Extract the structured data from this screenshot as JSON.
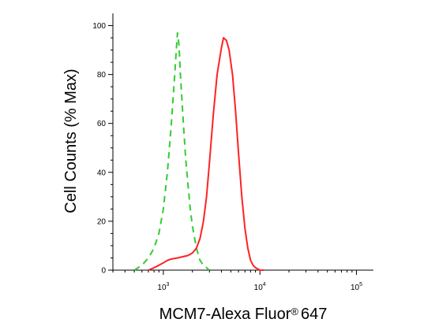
{
  "chart_data": {
    "type": "line",
    "title": "",
    "xlabel": "MCM7-Alexa Fluor",
    "xlabel_mark": "®",
    "xlabel_suffix": "647",
    "ylabel": "Cell Counts (% Max)",
    "x_scale": "log",
    "xlim": [
      300,
      150000
    ],
    "ylim": [
      0,
      105
    ],
    "y_ticks": [
      0,
      20,
      40,
      60,
      80,
      100
    ],
    "x_ticks": [
      {
        "value": 1000,
        "base": "10",
        "exp": "3"
      },
      {
        "value": 10000,
        "base": "10",
        "exp": "4"
      },
      {
        "value": 100000,
        "base": "10",
        "exp": "5"
      }
    ],
    "grid": false,
    "series": [
      {
        "color": "#33cc33",
        "line_style": "dashed",
        "x": [
          500,
          600,
          700,
          800,
          900,
          1000,
          1100,
          1200,
          1300,
          1350,
          1400,
          1450,
          1500,
          1600,
          1700,
          1800,
          1900,
          2000,
          2200,
          2400,
          2600,
          2800,
          3000
        ],
        "y": [
          0,
          2,
          5,
          9,
          15,
          25,
          40,
          58,
          78,
          88,
          97,
          92,
          80,
          62,
          46,
          35,
          25,
          18,
          9,
          4,
          2,
          1,
          0
        ]
      },
      {
        "color": "#ff2222",
        "line_style": "solid",
        "x": [
          700,
          800,
          900,
          1000,
          1100,
          1200,
          1400,
          1600,
          1800,
          2000,
          2200,
          2400,
          2600,
          2800,
          3000,
          3300,
          3600,
          4000,
          4200,
          4500,
          4800,
          5200,
          5600,
          6000,
          6500,
          7000,
          7500,
          8000,
          8500,
          9000,
          9500,
          10000,
          11000
        ],
        "y": [
          0,
          1,
          2,
          3,
          4,
          4.5,
          5,
          5.5,
          6,
          7,
          9,
          13,
          20,
          30,
          44,
          64,
          80,
          91,
          95,
          94,
          90,
          80,
          65,
          48,
          30,
          17,
          9,
          4,
          2,
          1,
          0.5,
          0,
          0
        ]
      }
    ]
  }
}
